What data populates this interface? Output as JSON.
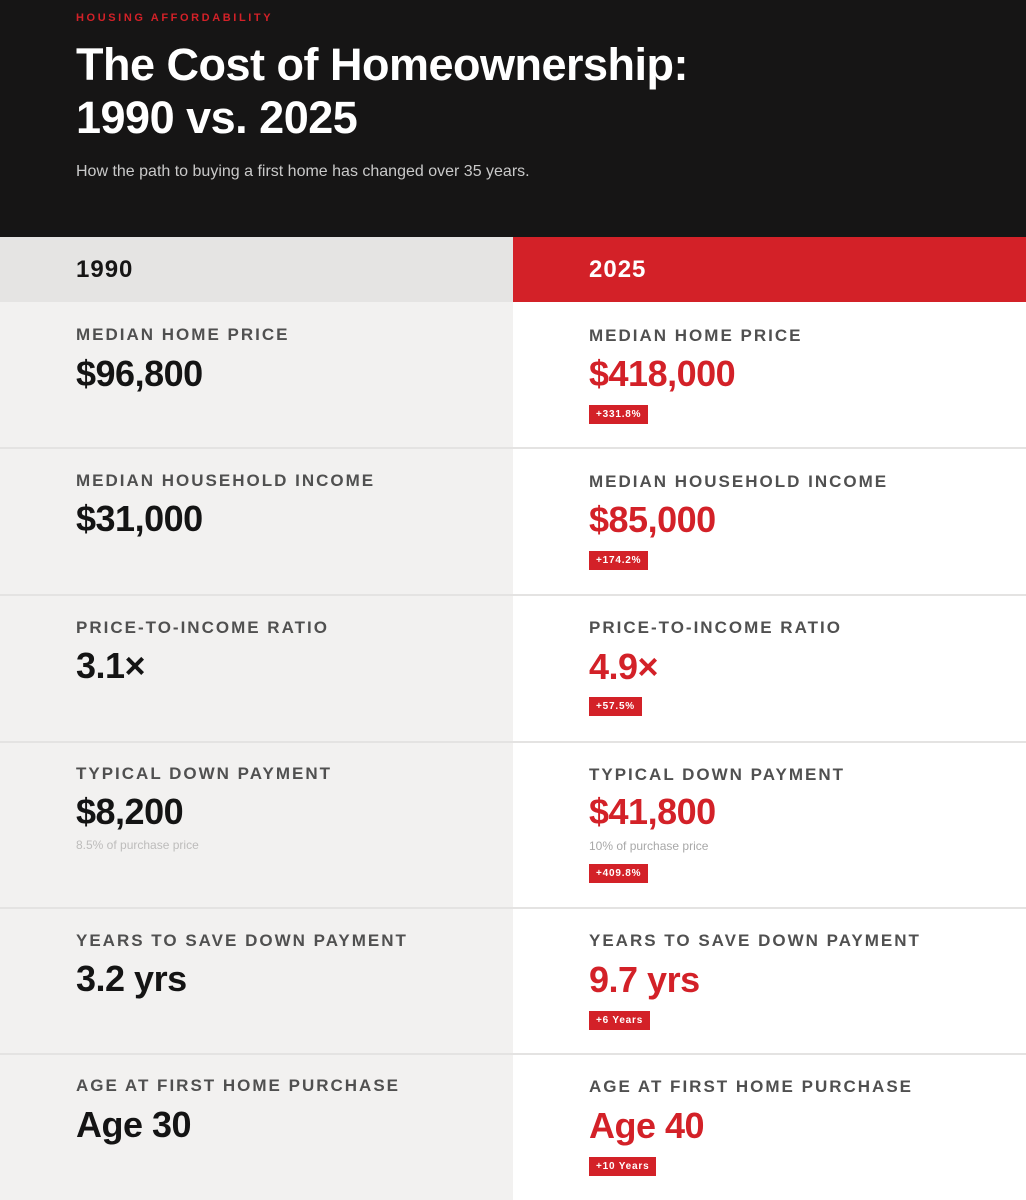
{
  "header": {
    "eyebrow": "HOUSING AFFORDABILITY",
    "title_line1": "The Cost of Homeownership:",
    "title_line2": "1990 vs. 2025",
    "subtitle": "How the path to buying a first home has changed over 35 years."
  },
  "columns": {
    "left_year": "1990",
    "right_year": "2025"
  },
  "metrics": [
    {
      "label": "MEDIAN HOME PRICE",
      "left_value": "$96,800",
      "right_value": "$418,000",
      "change": "+331.8%"
    },
    {
      "label": "MEDIAN HOUSEHOLD INCOME",
      "left_value": "$31,000",
      "right_value": "$85,000",
      "change": "+174.2%"
    },
    {
      "label": "PRICE-TO-INCOME RATIO",
      "left_value": "3.1×",
      "right_value": "4.9×",
      "change": "+57.5%"
    },
    {
      "label": "TYPICAL DOWN PAYMENT",
      "left_value": "$8,200",
      "left_note": "8.5% of purchase price",
      "right_value": "$41,800",
      "right_note": "10% of purchase price",
      "change": "+409.8%"
    },
    {
      "label": "YEARS TO SAVE DOWN PAYMENT",
      "left_value": "3.2 yrs",
      "right_value": "9.7 yrs",
      "change": "+6 Years"
    },
    {
      "label": "AGE AT FIRST HOME PURCHASE",
      "left_value": "Age 30",
      "right_value": "Age 40",
      "change": "+10 Years"
    }
  ],
  "colors": {
    "accent": "#d32128",
    "header_bg": "#161515",
    "left_bg": "#f2f1f0",
    "right_bg": "#ffffff"
  }
}
